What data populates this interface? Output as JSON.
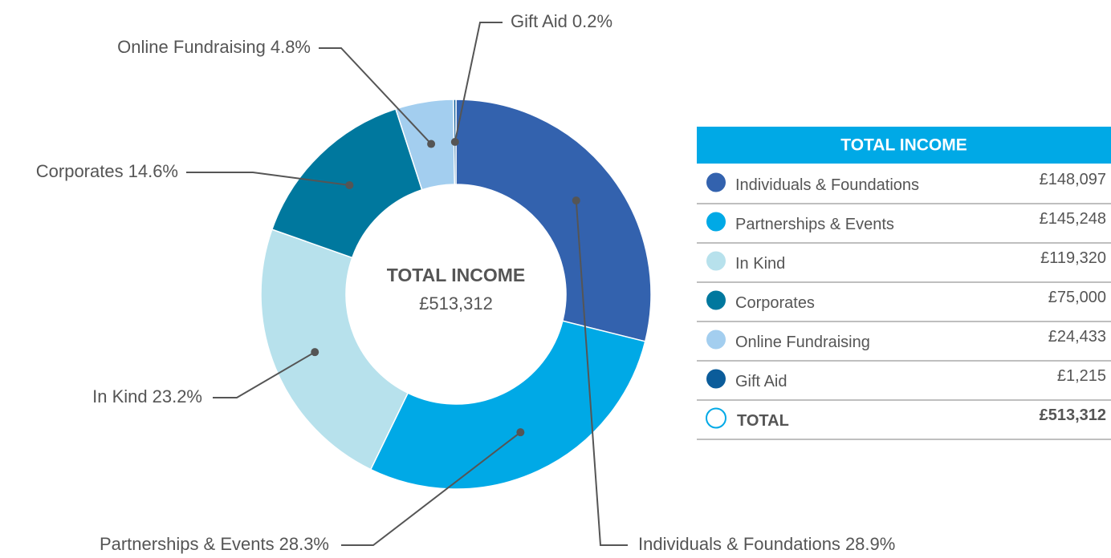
{
  "chart_data": {
    "type": "donut",
    "categories": [
      "Individuals & Foundations",
      "Partnerships & Events",
      "In Kind",
      "Corporates",
      "Online Fundraising",
      "Gift Aid"
    ],
    "values": [
      28.9,
      28.3,
      23.2,
      14.6,
      4.8,
      0.2
    ],
    "value_labels": [
      "28.9%",
      "28.3%",
      "23.2%",
      "14.6%",
      "4.8%",
      "0.2%"
    ],
    "colors": [
      "#3362ae",
      "#00a9e6",
      "#b7e1ec",
      "#00789e",
      "#a3ceef",
      "#0b5c9a"
    ],
    "center_title": "TOTAL INCOME",
    "center_value": "£513,312",
    "table": {
      "title": "TOTAL INCOME",
      "rows": [
        [
          "Individuals & Foundations",
          "£148,097"
        ],
        [
          "Partnerships & Events",
          "£145,248"
        ],
        [
          "In Kind",
          "£119,320"
        ],
        [
          "Corporates",
          "£75,000"
        ],
        [
          "Online Fundraising",
          "£24,433"
        ],
        [
          "Gift Aid",
          "£1,215"
        ]
      ],
      "total": [
        "TOTAL",
        "£513,312"
      ]
    }
  }
}
